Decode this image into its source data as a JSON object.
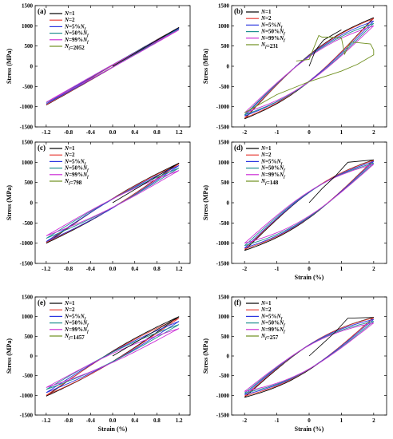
{
  "figure": {
    "colors": {
      "N=1": "#000000",
      "N=2": "#e8403a",
      "N=5%Nf": "#2a35e0",
      "N=50%Nf": "#1f8f8f",
      "N=99%Nf": "#cc2fd6",
      "Nf": "#6f8f1f",
      "axis": "#000000"
    }
  },
  "chart_data": [
    {
      "id": "a",
      "label": "(a)",
      "type": "line",
      "xlabel": "",
      "ylabel": "Stress (MPa)",
      "xlim": [
        -1.4,
        1.4
      ],
      "ylim": [
        -1500,
        1500
      ],
      "xticks": [
        "-1.2",
        "-0.8",
        "-0.4",
        "0.0",
        "0.4",
        "0.8",
        "1.2"
      ],
      "yticks": [
        "-1500",
        "-1000",
        "-500",
        "0",
        "500",
        "1000",
        "1500"
      ],
      "amp": 1.2,
      "legend": [
        "N=1",
        "N=2",
        "N=5%Nf",
        "N=50%Nf",
        "N=99%Nf",
        "Nf=2052"
      ],
      "legend_position": "top-left",
      "series": [
        {
          "key": "N=1",
          "min": [
            -1.2,
            -960
          ],
          "max": [
            1.2,
            960
          ],
          "width_mpa": 60
        },
        {
          "key": "N=2",
          "min": [
            -1.2,
            -950
          ],
          "max": [
            1.2,
            950
          ],
          "width_mpa": 60
        },
        {
          "key": "N=5%Nf",
          "min": [
            -1.2,
            -930
          ],
          "max": [
            1.2,
            940
          ],
          "width_mpa": 65
        },
        {
          "key": "N=50%Nf",
          "min": [
            -1.2,
            -900
          ],
          "max": [
            1.2,
            920
          ],
          "width_mpa": 65
        },
        {
          "key": "N=99%Nf",
          "min": [
            -1.2,
            -890
          ],
          "max": [
            1.2,
            900
          ],
          "width_mpa": 70
        }
      ],
      "initial": {
        "x": [
          0,
          1.2
        ],
        "y": [
          0,
          960
        ]
      }
    },
    {
      "id": "b",
      "label": "(b)",
      "type": "line",
      "xlabel": "",
      "ylabel": "Stress (MPa)",
      "xlim": [
        -2.4,
        2.4
      ],
      "ylim": [
        -1500,
        1500
      ],
      "xticks": [
        "-2",
        "-1",
        "0",
        "1",
        "2"
      ],
      "yticks": [
        "-1500",
        "-1000",
        "-500",
        "0",
        "500",
        "1000",
        "1500"
      ],
      "amp": 2,
      "legend": [
        "N=1",
        "N=2",
        "N=5%Nf",
        "N=50%Nf",
        "N=99%Nf",
        "Nf=231"
      ],
      "legend_position": "top-left",
      "series": [
        {
          "key": "N=1",
          "min": [
            -2,
            -1300
          ],
          "max": [
            2,
            1200
          ],
          "width_mpa": 750
        },
        {
          "key": "N=2",
          "min": [
            -2,
            -1280
          ],
          "max": [
            2,
            1180
          ],
          "width_mpa": 730
        },
        {
          "key": "N=5%Nf",
          "min": [
            -2,
            -1230
          ],
          "max": [
            2,
            1120
          ],
          "width_mpa": 720
        },
        {
          "key": "N=50%Nf",
          "min": [
            -2,
            -1200
          ],
          "max": [
            2,
            1060
          ],
          "width_mpa": 720
        },
        {
          "key": "N=99%Nf",
          "min": [
            -2,
            -1150
          ],
          "max": [
            2,
            1000
          ],
          "width_mpa": 700
        }
      ],
      "initial": {
        "x": [
          0,
          0.2,
          0.45,
          1.0
        ],
        "y": [
          0,
          400,
          650,
          900
        ]
      },
      "failure": {
        "x": [
          -2,
          -1,
          0,
          1,
          1.5,
          2,
          2,
          1.9,
          1.3,
          1.2,
          1.1,
          1.0,
          0.6,
          0.4,
          0.3,
          0,
          -0.4
        ],
        "y": [
          -1150,
          -700,
          -380,
          -120,
          50,
          280,
          400,
          550,
          600,
          480,
          300,
          700,
          720,
          720,
          760,
          170,
          130
        ]
      }
    },
    {
      "id": "c",
      "label": "(c)",
      "type": "line",
      "xlabel": "",
      "ylabel": "Stress (MPa)",
      "xlim": [
        -1.4,
        1.4
      ],
      "ylim": [
        -1500,
        1500
      ],
      "xticks": [
        "-1.2",
        "-0.8",
        "-0.4",
        "0.0",
        "0.4",
        "0.8",
        "1.2"
      ],
      "yticks": [
        "-1500",
        "-1000",
        "-500",
        "0",
        "500",
        "1000",
        "1500"
      ],
      "amp": 1.2,
      "legend": [
        "N=1",
        "N=2",
        "N=5%Nf",
        "N=50%Nf",
        "N=99%Nf",
        "Nf=798"
      ],
      "legend_position": "top-left",
      "series": [
        {
          "key": "N=1",
          "min": [
            -1.2,
            -1000
          ],
          "max": [
            1.2,
            980
          ],
          "width_mpa": 260
        },
        {
          "key": "N=2",
          "min": [
            -1.2,
            -980
          ],
          "max": [
            1.2,
            960
          ],
          "width_mpa": 250
        },
        {
          "key": "N=5%Nf",
          "min": [
            -1.2,
            -960
          ],
          "max": [
            1.2,
            920
          ],
          "width_mpa": 250
        },
        {
          "key": "N=50%Nf",
          "min": [
            -1.2,
            -880
          ],
          "max": [
            1.2,
            860
          ],
          "width_mpa": 240
        },
        {
          "key": "N=99%Nf",
          "min": [
            -1.2,
            -820
          ],
          "max": [
            1.2,
            800
          ],
          "width_mpa": 240
        }
      ],
      "initial": {
        "x": [
          0,
          1.2
        ],
        "y": [
          0,
          980
        ]
      }
    },
    {
      "id": "d",
      "label": "(d)",
      "type": "line",
      "xlabel": "Strain (%)",
      "ylabel": "Stress (MPa)",
      "xlim": [
        -2.4,
        2.4
      ],
      "ylim": [
        -1500,
        1500
      ],
      "xticks": [
        "-2",
        "-1",
        "0",
        "1",
        "2"
      ],
      "yticks": [
        "-1500",
        "-1000",
        "-500",
        "0",
        "500",
        "1000",
        "1500"
      ],
      "amp": 2,
      "legend": [
        "N=1",
        "N=2",
        "N=5%Nf",
        "N=50%Nf",
        "N=99%Nf",
        "Nf=148"
      ],
      "legend_position": "top-left",
      "series": [
        {
          "key": "N=1",
          "min": [
            -2,
            -1180
          ],
          "max": [
            2,
            1060
          ],
          "width_mpa": 720
        },
        {
          "key": "N=2",
          "min": [
            -2,
            -1150
          ],
          "max": [
            2,
            1050
          ],
          "width_mpa": 710
        },
        {
          "key": "N=5%Nf",
          "min": [
            -2,
            -1120
          ],
          "max": [
            2,
            1020
          ],
          "width_mpa": 700
        },
        {
          "key": "N=50%Nf",
          "min": [
            -2,
            -1060
          ],
          "max": [
            2,
            980
          ],
          "width_mpa": 700
        },
        {
          "key": "N=99%Nf",
          "min": [
            -2,
            -1000
          ],
          "max": [
            2,
            950
          ],
          "width_mpa": 690
        }
      ],
      "initial": {
        "x": [
          0,
          0.4,
          0.8,
          1.2,
          2.0
        ],
        "y": [
          0,
          350,
          650,
          1000,
          1060
        ]
      }
    },
    {
      "id": "e",
      "label": "(e)",
      "type": "line",
      "xlabel": "Strain (%)",
      "ylabel": "Stress (MPa)",
      "xlim": [
        -1.4,
        1.4
      ],
      "ylim": [
        -1500,
        1500
      ],
      "xticks": [
        "-1.2",
        "-0.8",
        "-0.4",
        "0.0",
        "0.4",
        "0.8",
        "1.2"
      ],
      "yticks": [
        "-1500",
        "-1000",
        "-500",
        "0",
        "500",
        "1000",
        "1500"
      ],
      "amp": 1.2,
      "legend": [
        "N=1",
        "N=2",
        "N=5%Nf",
        "N=50%Nf",
        "N=99%Nf",
        "Nf=1457"
      ],
      "legend_position": "top-left",
      "series": [
        {
          "key": "N=1",
          "min": [
            -1.2,
            -1020
          ],
          "max": [
            1.2,
            1000
          ],
          "width_mpa": 300
        },
        {
          "key": "N=2",
          "min": [
            -1.2,
            -1000
          ],
          "max": [
            1.2,
            960
          ],
          "width_mpa": 290
        },
        {
          "key": "N=5%Nf",
          "min": [
            -1.2,
            -930
          ],
          "max": [
            1.2,
            880
          ],
          "width_mpa": 280
        },
        {
          "key": "N=50%Nf",
          "min": [
            -1.2,
            -850
          ],
          "max": [
            1.2,
            800
          ],
          "width_mpa": 270
        },
        {
          "key": "N=99%Nf",
          "min": [
            -1.2,
            -800
          ],
          "max": [
            1.2,
            700
          ],
          "width_mpa": 260
        }
      ],
      "initial": {
        "x": [
          0,
          1.2
        ],
        "y": [
          0,
          1000
        ]
      }
    },
    {
      "id": "f",
      "label": "(f)",
      "type": "line",
      "xlabel": "Strain (%)",
      "ylabel": "Stress (MPa)",
      "xlim": [
        -2.4,
        2.4
      ],
      "ylim": [
        -1500,
        1500
      ],
      "xticks": [
        "-2",
        "-1",
        "0",
        "1",
        "2"
      ],
      "yticks": [
        "-1500",
        "-1000",
        "-500",
        "0",
        "500",
        "1000",
        "1500"
      ],
      "amp": 2,
      "legend": [
        "N=1",
        "N=2",
        "N=5%Nf",
        "N=50%Nf",
        "N=99%Nf",
        "Nf=257"
      ],
      "legend_position": "top-left",
      "series": [
        {
          "key": "N=1",
          "min": [
            -2,
            -1050
          ],
          "max": [
            2,
            980
          ],
          "width_mpa": 720
        },
        {
          "key": "N=2",
          "min": [
            -2,
            -1020
          ],
          "max": [
            2,
            970
          ],
          "width_mpa": 710
        },
        {
          "key": "N=5%Nf",
          "min": [
            -2,
            -980
          ],
          "max": [
            2,
            930
          ],
          "width_mpa": 700
        },
        {
          "key": "N=50%Nf",
          "min": [
            -2,
            -940
          ],
          "max": [
            2,
            880
          ],
          "width_mpa": 690
        },
        {
          "key": "N=99%Nf",
          "min": [
            -2,
            -900
          ],
          "max": [
            2,
            840
          ],
          "width_mpa": 680
        }
      ],
      "initial": {
        "x": [
          0,
          0.4,
          0.8,
          1.2,
          2.0
        ],
        "y": [
          0,
          300,
          600,
          960,
          980
        ]
      }
    }
  ]
}
